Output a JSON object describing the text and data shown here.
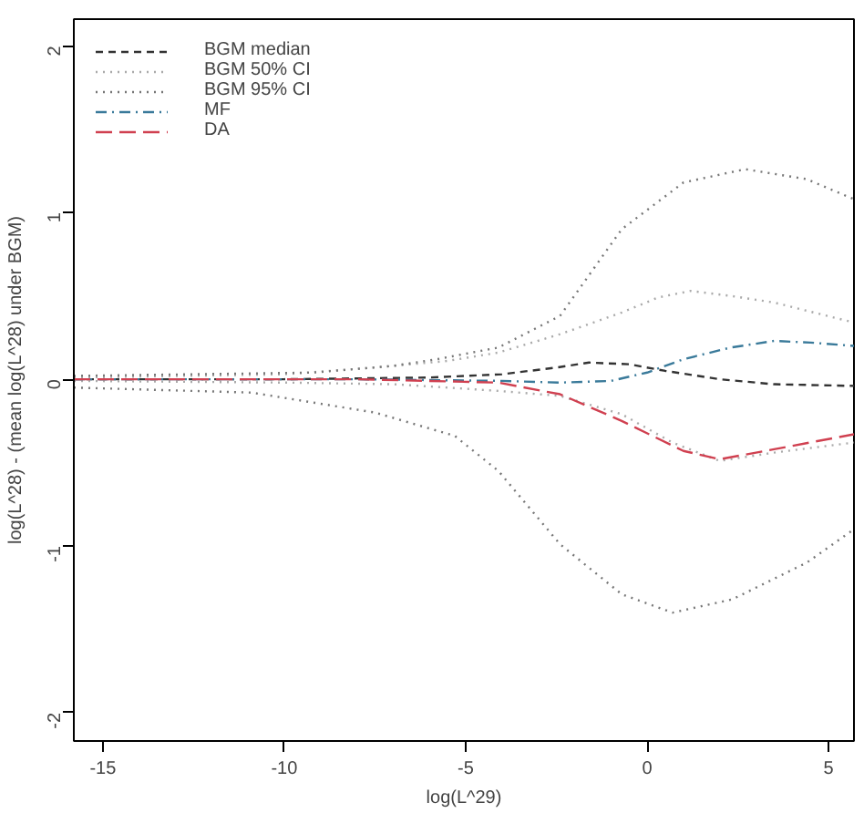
{
  "chart_data": {
    "type": "line",
    "xlabel": "log(L^29)",
    "ylabel": "log(L^28) - (mean log(L^28) under BGM)",
    "xlim": [
      -15.8,
      5.7
    ],
    "ylim": [
      -2.17,
      2.16
    ],
    "xticks": [
      -15,
      -10,
      -5,
      0,
      5
    ],
    "yticks": [
      -2,
      -1,
      0,
      1,
      2
    ],
    "grid": false,
    "legend": "top left",
    "series": [
      {
        "name": "BGM median",
        "color": "#333333",
        "line_style": "dashed",
        "x": [
          -15.8,
          -10,
          -6,
          -4,
          -2.5,
          -1.6,
          -0.5,
          0.5,
          2,
          3.5,
          5.7
        ],
        "values": [
          0,
          0,
          0.01,
          0.03,
          0.07,
          0.1,
          0.09,
          0.05,
          0,
          -0.03,
          -0.04
        ]
      },
      {
        "name": "BGM 50% CI",
        "color": "#aaaaaa",
        "line_style": "dotted",
        "x": [
          -15.8,
          -10,
          -7.5,
          -5.5,
          -4.1,
          -2.4,
          -0.7,
          0.3,
          1.2,
          2.3,
          3.5,
          5.7
        ],
        "values": [
          0.01,
          0.03,
          0.07,
          0.11,
          0.16,
          0.27,
          0.4,
          0.49,
          0.53,
          0.5,
          0.46,
          0.34
        ]
      },
      {
        "color": "#aaaaaa",
        "line_style": "dotted",
        "x": [
          -15.8,
          -10,
          -7,
          -5.5,
          -4.1,
          -2.4,
          -0.7,
          0.7,
          2,
          3.5,
          5.7
        ],
        "values": [
          -0.01,
          -0.02,
          -0.03,
          -0.05,
          -0.07,
          -0.1,
          -0.21,
          -0.38,
          -0.49,
          -0.44,
          -0.38
        ]
      },
      {
        "name": "BGM 95% CI",
        "color": "#777777",
        "line_style": "dotted",
        "x": [
          -15.8,
          -9.2,
          -7,
          -5.8,
          -4.1,
          -2.4,
          -0.7,
          1,
          2.7,
          4.4,
          5.7
        ],
        "values": [
          0.02,
          0.04,
          0.08,
          0.12,
          0.19,
          0.38,
          0.9,
          1.18,
          1.26,
          1.2,
          1.08
        ]
      },
      {
        "color": "#777777",
        "line_style": "dotted",
        "x": [
          -15.8,
          -10.9,
          -7.5,
          -5.3,
          -4.1,
          -2.4,
          -0.7,
          0.7,
          2.35,
          4.4,
          5.7
        ],
        "values": [
          -0.05,
          -0.08,
          -0.2,
          -0.34,
          -0.55,
          -0.99,
          -1.29,
          -1.4,
          -1.32,
          -1.1,
          -0.9
        ]
      },
      {
        "name": "MF",
        "color": "#3a7a9a",
        "line_style": "dashdot",
        "x": [
          -15.8,
          -8,
          -4,
          -2.4,
          -1,
          0,
          1,
          2.3,
          3.5,
          4.5,
          5.7
        ],
        "values": [
          0,
          0,
          -0.01,
          -0.02,
          -0.01,
          0.04,
          0.12,
          0.19,
          0.23,
          0.22,
          0.2
        ]
      },
      {
        "name": "DA",
        "color": "#d04050",
        "line_style": "longdash",
        "x": [
          -15.8,
          -8,
          -4.1,
          -2.4,
          -0.7,
          1,
          2,
          3.5,
          5.7
        ],
        "values": [
          0,
          0,
          -0.02,
          -0.09,
          -0.25,
          -0.43,
          -0.48,
          -0.42,
          -0.33
        ]
      }
    ]
  }
}
